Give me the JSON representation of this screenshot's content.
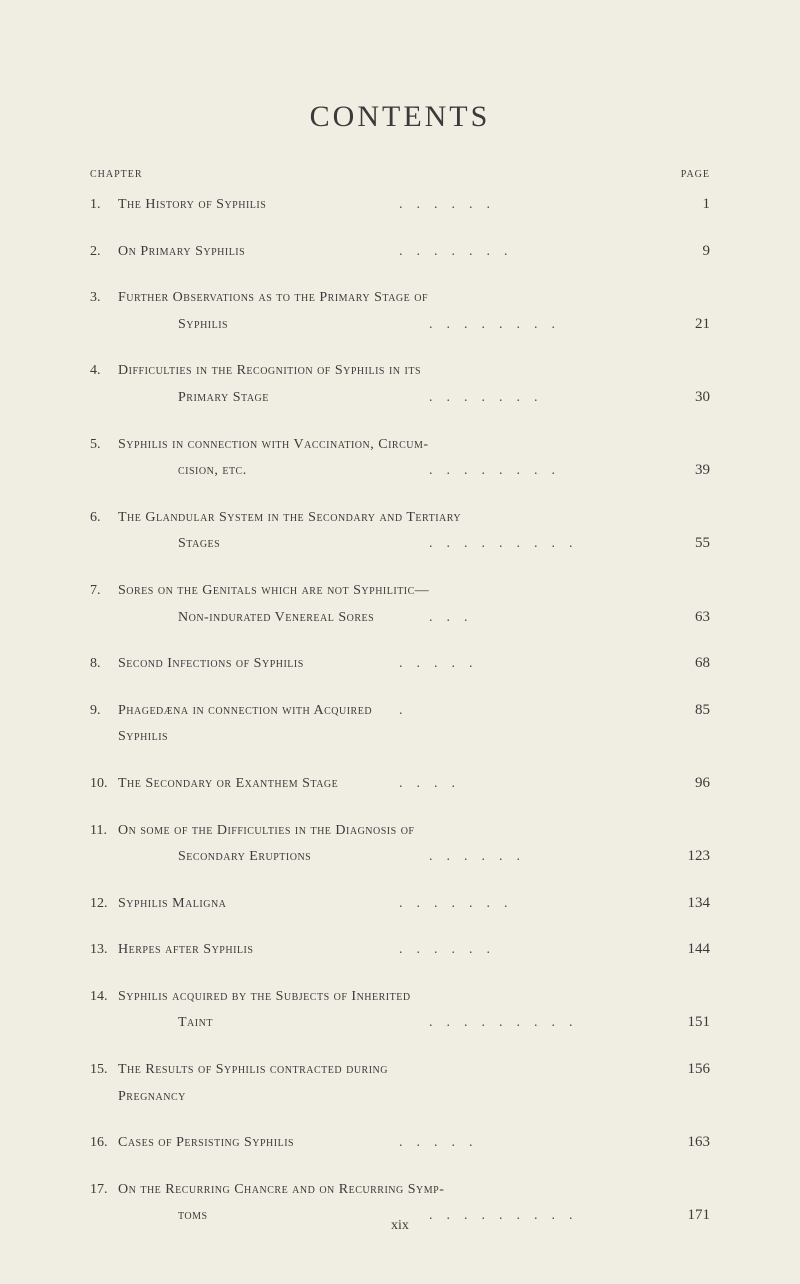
{
  "title": "CONTENTS",
  "header_left": "CHAPTER",
  "header_right": "PAGE",
  "entries": [
    {
      "num": "1.",
      "text": "The History of Syphilis",
      "page": "1",
      "dotcount": 6
    },
    {
      "num": "2.",
      "text": "On Primary Syphilis",
      "page": "9",
      "dotcount": 7
    },
    {
      "num": "3.",
      "line1": "Further Observations as to the Primary Stage of",
      "line2": "Syphilis",
      "page": "21",
      "dotcount": 8
    },
    {
      "num": "4.",
      "line1": "Difficulties in the Recognition of Syphilis in its",
      "line2": "Primary Stage",
      "page": "30",
      "dotcount": 7
    },
    {
      "num": "5.",
      "line1": "Syphilis in connection with Vaccination, Circum-",
      "line2": "cision, etc.",
      "page": "39",
      "dotcount": 8
    },
    {
      "num": "6.",
      "line1": "The Glandular System in the Secondary and Tertiary",
      "line2": "Stages",
      "page": "55",
      "dotcount": 9
    },
    {
      "num": "7.",
      "line1": "Sores on the Genitals which are not Syphilitic—",
      "line2": "Non-indurated Venereal Sores",
      "page": "63",
      "dotcount": 3
    },
    {
      "num": "8.",
      "text": "Second Infections of Syphilis",
      "page": "68",
      "dotcount": 5
    },
    {
      "num": "9.",
      "text": "Phagedæna in connection with Acquired Syphilis",
      "page": "85",
      "dotcount": 1
    },
    {
      "num": "10.",
      "text": "The Secondary or Exanthem Stage",
      "page": "96",
      "dotcount": 4
    },
    {
      "num": "11.",
      "line1": "On some of the Difficulties in the Diagnosis of",
      "line2": "Secondary Eruptions",
      "page": "123",
      "dotcount": 6
    },
    {
      "num": "12.",
      "text": "Syphilis Maligna",
      "page": "134",
      "dotcount": 7
    },
    {
      "num": "13.",
      "text": "Herpes after Syphilis",
      "page": "144",
      "dotcount": 6
    },
    {
      "num": "14.",
      "line1": "Syphilis acquired by the Subjects of Inherited",
      "line2": "Taint",
      "page": "151",
      "dotcount": 9
    },
    {
      "num": "15.",
      "text": "The Results of Syphilis contracted during Pregnancy",
      "page": "156",
      "dotcount": 0
    },
    {
      "num": "16.",
      "text": "Cases of Persisting Syphilis",
      "page": "163",
      "dotcount": 5
    },
    {
      "num": "17.",
      "line1": "On the Recurring Chancre and on Recurring Symp-",
      "line2": "toms",
      "page": "171",
      "dotcount": 9
    }
  ],
  "footer": "xix",
  "colors": {
    "background": "#f0ede2",
    "text": "#3a3a3a"
  },
  "typography": {
    "title_fontsize": 30,
    "body_fontsize": 14,
    "header_fontsize": 10
  }
}
